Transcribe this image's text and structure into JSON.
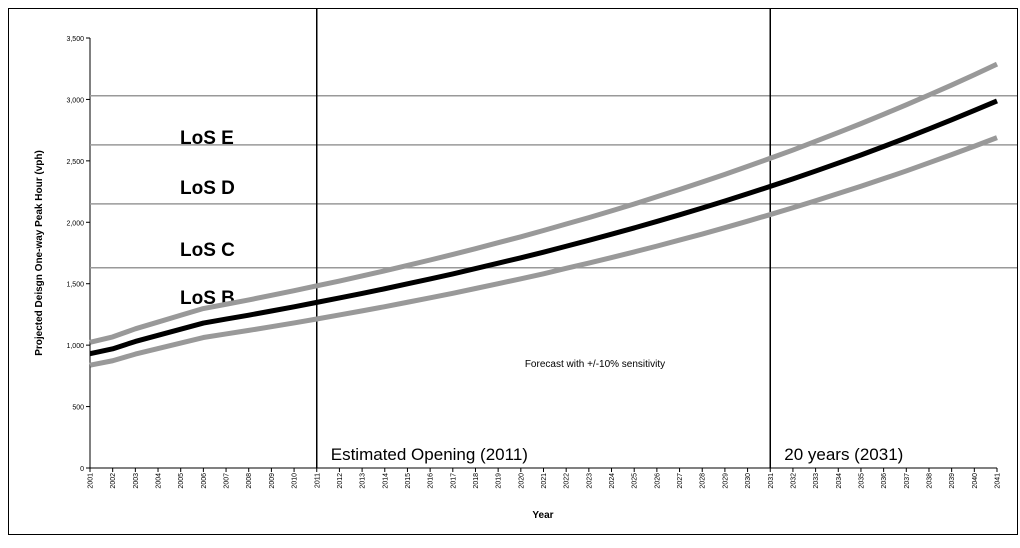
{
  "chart_data": {
    "type": "line",
    "x_label": "Year",
    "y_label": "Projected Deisgn One-way Peak Hour (vph)",
    "categories": [
      "2001",
      "2002",
      "2003",
      "2004",
      "2005",
      "2006",
      "2007",
      "2008",
      "2009",
      "2010",
      "2011",
      "2012",
      "2013",
      "2014",
      "2015",
      "2016",
      "2017",
      "2018",
      "2019",
      "2020",
      "2021",
      "2022",
      "2023",
      "2024",
      "2025",
      "2026",
      "2027",
      "2028",
      "2029",
      "2030",
      "2031",
      "2032",
      "2033",
      "2034",
      "2035",
      "2036",
      "2037",
      "2038",
      "2039",
      "2040",
      "2041"
    ],
    "series": [
      {
        "color": "#999999",
        "values": [
          1023,
          1067,
          1133,
          1188,
          1243,
          1298,
          1333,
          1368,
          1406,
          1443,
          1483,
          1522,
          1563,
          1605,
          1649,
          1693,
          1738,
          1785,
          1834,
          1882,
          1933,
          1986,
          2038,
          2093,
          2149,
          2208,
          2267,
          2328,
          2390,
          2455,
          2521,
          2588,
          2659,
          2730,
          2803,
          2879,
          2956,
          3036,
          3117,
          3201,
          3287
        ]
      },
      {
        "color": "#999999",
        "values": [
          837,
          873,
          927,
          972,
          1017,
          1062,
          1091,
          1120,
          1150,
          1181,
          1213,
          1246,
          1279,
          1313,
          1349,
          1385,
          1422,
          1461,
          1500,
          1540,
          1581,
          1625,
          1668,
          1713,
          1759,
          1806,
          1855,
          1904,
          1956,
          2009,
          2063,
          2118,
          2175,
          2234,
          2293,
          2355,
          2418,
          2484,
          2551,
          2619,
          2689
        ]
      },
      {
        "color": "#000000",
        "values": [
          930,
          970,
          1030,
          1080,
          1130,
          1180,
          1212,
          1244,
          1278,
          1312,
          1348,
          1384,
          1421,
          1459,
          1499,
          1539,
          1580,
          1623,
          1667,
          1711,
          1757,
          1805,
          1853,
          1903,
          1954,
          2007,
          2061,
          2116,
          2173,
          2232,
          2292,
          2353,
          2417,
          2482,
          2548,
          2617,
          2687,
          2760,
          2834,
          2910,
          2988
        ]
      }
    ],
    "ylim": [
      0,
      3500
    ],
    "yticks": [
      0,
      500,
      {
        "value": 1000,
        "label": "1,000"
      },
      {
        "value": 1500,
        "label": "1,500"
      },
      {
        "value": 2000,
        "label": "2,000"
      },
      {
        "value": 2500,
        "label": "2,500"
      },
      {
        "value": 3000,
        "label": "3,000"
      },
      {
        "value": 3500,
        "label": "3,500"
      }
    ],
    "reference_lines": [
      3030,
      2630,
      2150,
      1630
    ],
    "level_labels": [
      "LoS E",
      "LoS D",
      "LoS C",
      "LoS B"
    ],
    "vlines": [
      {
        "x": "2011",
        "label": "Estimated Opening (2011)"
      },
      {
        "x": "2031",
        "label": "20 years (2031)"
      }
    ],
    "annotation": "Forecast with +/-10% sensitivity"
  }
}
